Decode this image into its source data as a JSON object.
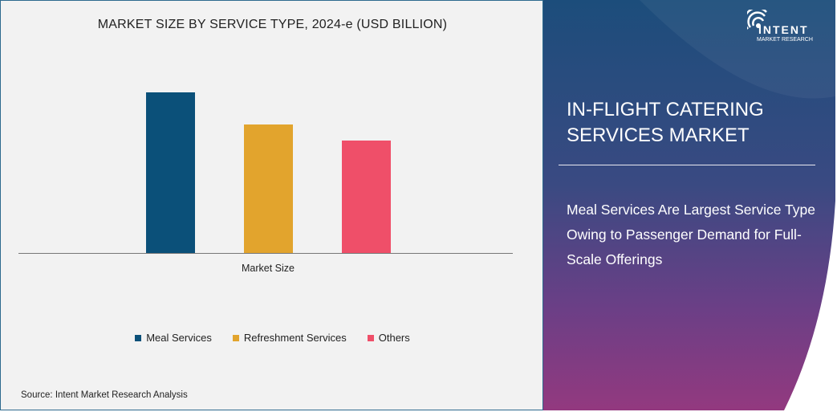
{
  "chart_data": {
    "type": "bar",
    "title": "MARKET SIZE BY SERVICE TYPE, 2024-e (USD BILLION)",
    "categories": [
      "Market Size"
    ],
    "series": [
      {
        "name": "Meal Services",
        "values": [
          100
        ],
        "color": "#0b5079"
      },
      {
        "name": "Refreshment Services",
        "values": [
          80
        ],
        "color": "#e2a42d"
      },
      {
        "name": "Others",
        "values": [
          70
        ],
        "color": "#ef4f69"
      }
    ],
    "ylim": [
      0,
      100
    ],
    "grid": false,
    "legend": "bottom"
  },
  "source": "Source: Intent Market Research Analysis",
  "panel": {
    "title_line1": "IN-FLIGHT CATERING",
    "title_line2": "SERVICES MARKET",
    "subtitle": "Meal Services Are Largest Service Type Owing to Passenger Demand for Full-Scale Offerings",
    "logo_brand": "INTENT",
    "logo_tag": "MARKET RESEARCH"
  }
}
